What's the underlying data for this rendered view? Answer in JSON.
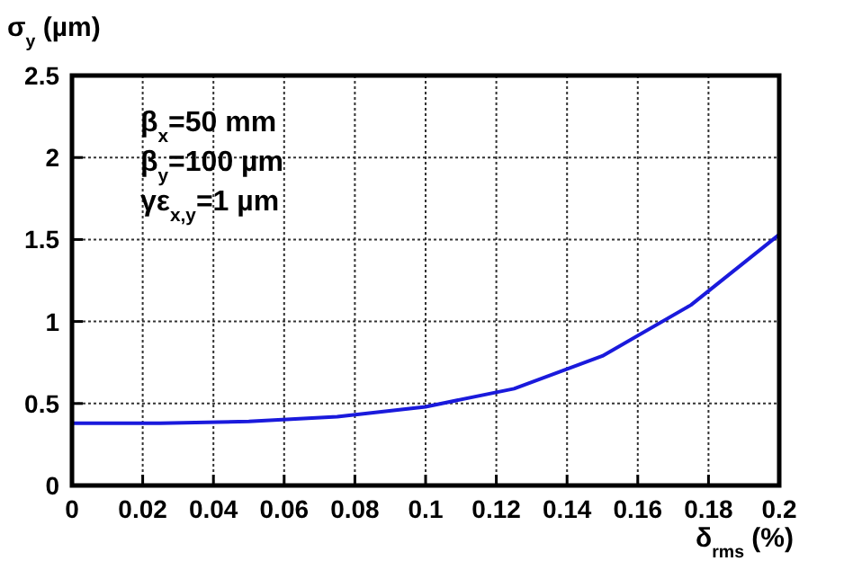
{
  "chart_data": {
    "type": "line",
    "xlabel": "δ$_{rms}$ (%)",
    "ylabel": "σ$_{y}$ (µm)",
    "x": [
      0,
      0.025,
      0.05,
      0.075,
      0.1,
      0.125,
      0.15,
      0.175,
      0.2
    ],
    "series": [
      {
        "color": "#1a1adc",
        "values": [
          0.38,
          0.38,
          0.39,
          0.42,
          0.48,
          0.59,
          0.79,
          1.1,
          1.53
        ]
      }
    ],
    "xlim": [
      0,
      0.2
    ],
    "xticks": [
      0,
      0.02,
      0.04,
      0.06,
      0.08,
      0.1,
      0.12,
      0.14,
      0.16,
      0.18,
      0.2
    ],
    "ylim": [
      0,
      2.5
    ],
    "yticks": [
      0,
      0.5,
      1,
      1.5,
      2,
      2.5
    ],
    "grid": true,
    "marker": "none",
    "line_style": "solid",
    "annotations": [
      "β$_{x}$=50 mm",
      "β$_{y}$=100 µm",
      "γε$_{x,y}$=1 µm"
    ]
  }
}
